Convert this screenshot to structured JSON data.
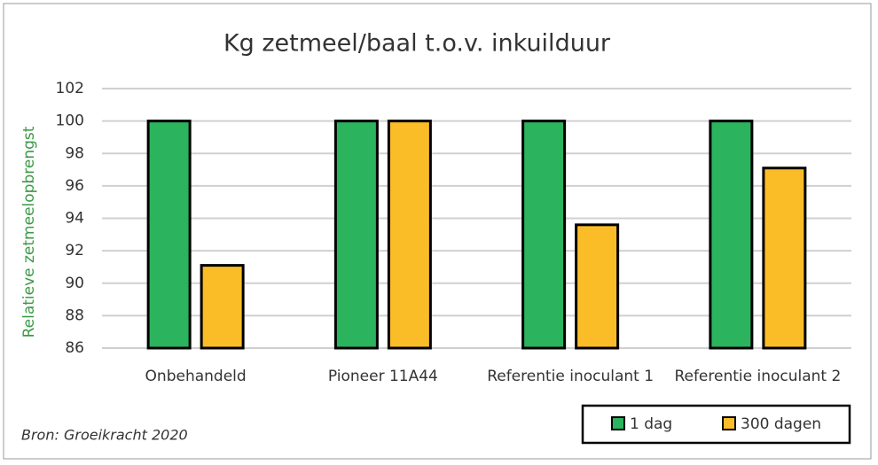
{
  "chart_data": {
    "type": "bar",
    "title": "Kg zetmeel/baal t.o.v. inkuilduur",
    "y_label": "Relatieve zetmeelopbrengst",
    "source": "Bron: Groeikracht 2020",
    "categories": [
      "Onbehandeld",
      "Pioneer 11A44",
      "Referentie inoculant 1",
      "Referentie inoculant 2"
    ],
    "series": [
      {
        "name": "1 dag",
        "color": "#2bb35e",
        "values": [
          100,
          100,
          100,
          100
        ]
      },
      {
        "name": "300 dagen",
        "color": "#fbbd27",
        "values": [
          91.1,
          100,
          93.6,
          97.1
        ]
      }
    ],
    "ylim": [
      86,
      102
    ],
    "yticks": [
      86,
      88,
      90,
      92,
      94,
      96,
      98,
      100,
      102
    ],
    "grid": true,
    "legend": "bottom-right"
  }
}
